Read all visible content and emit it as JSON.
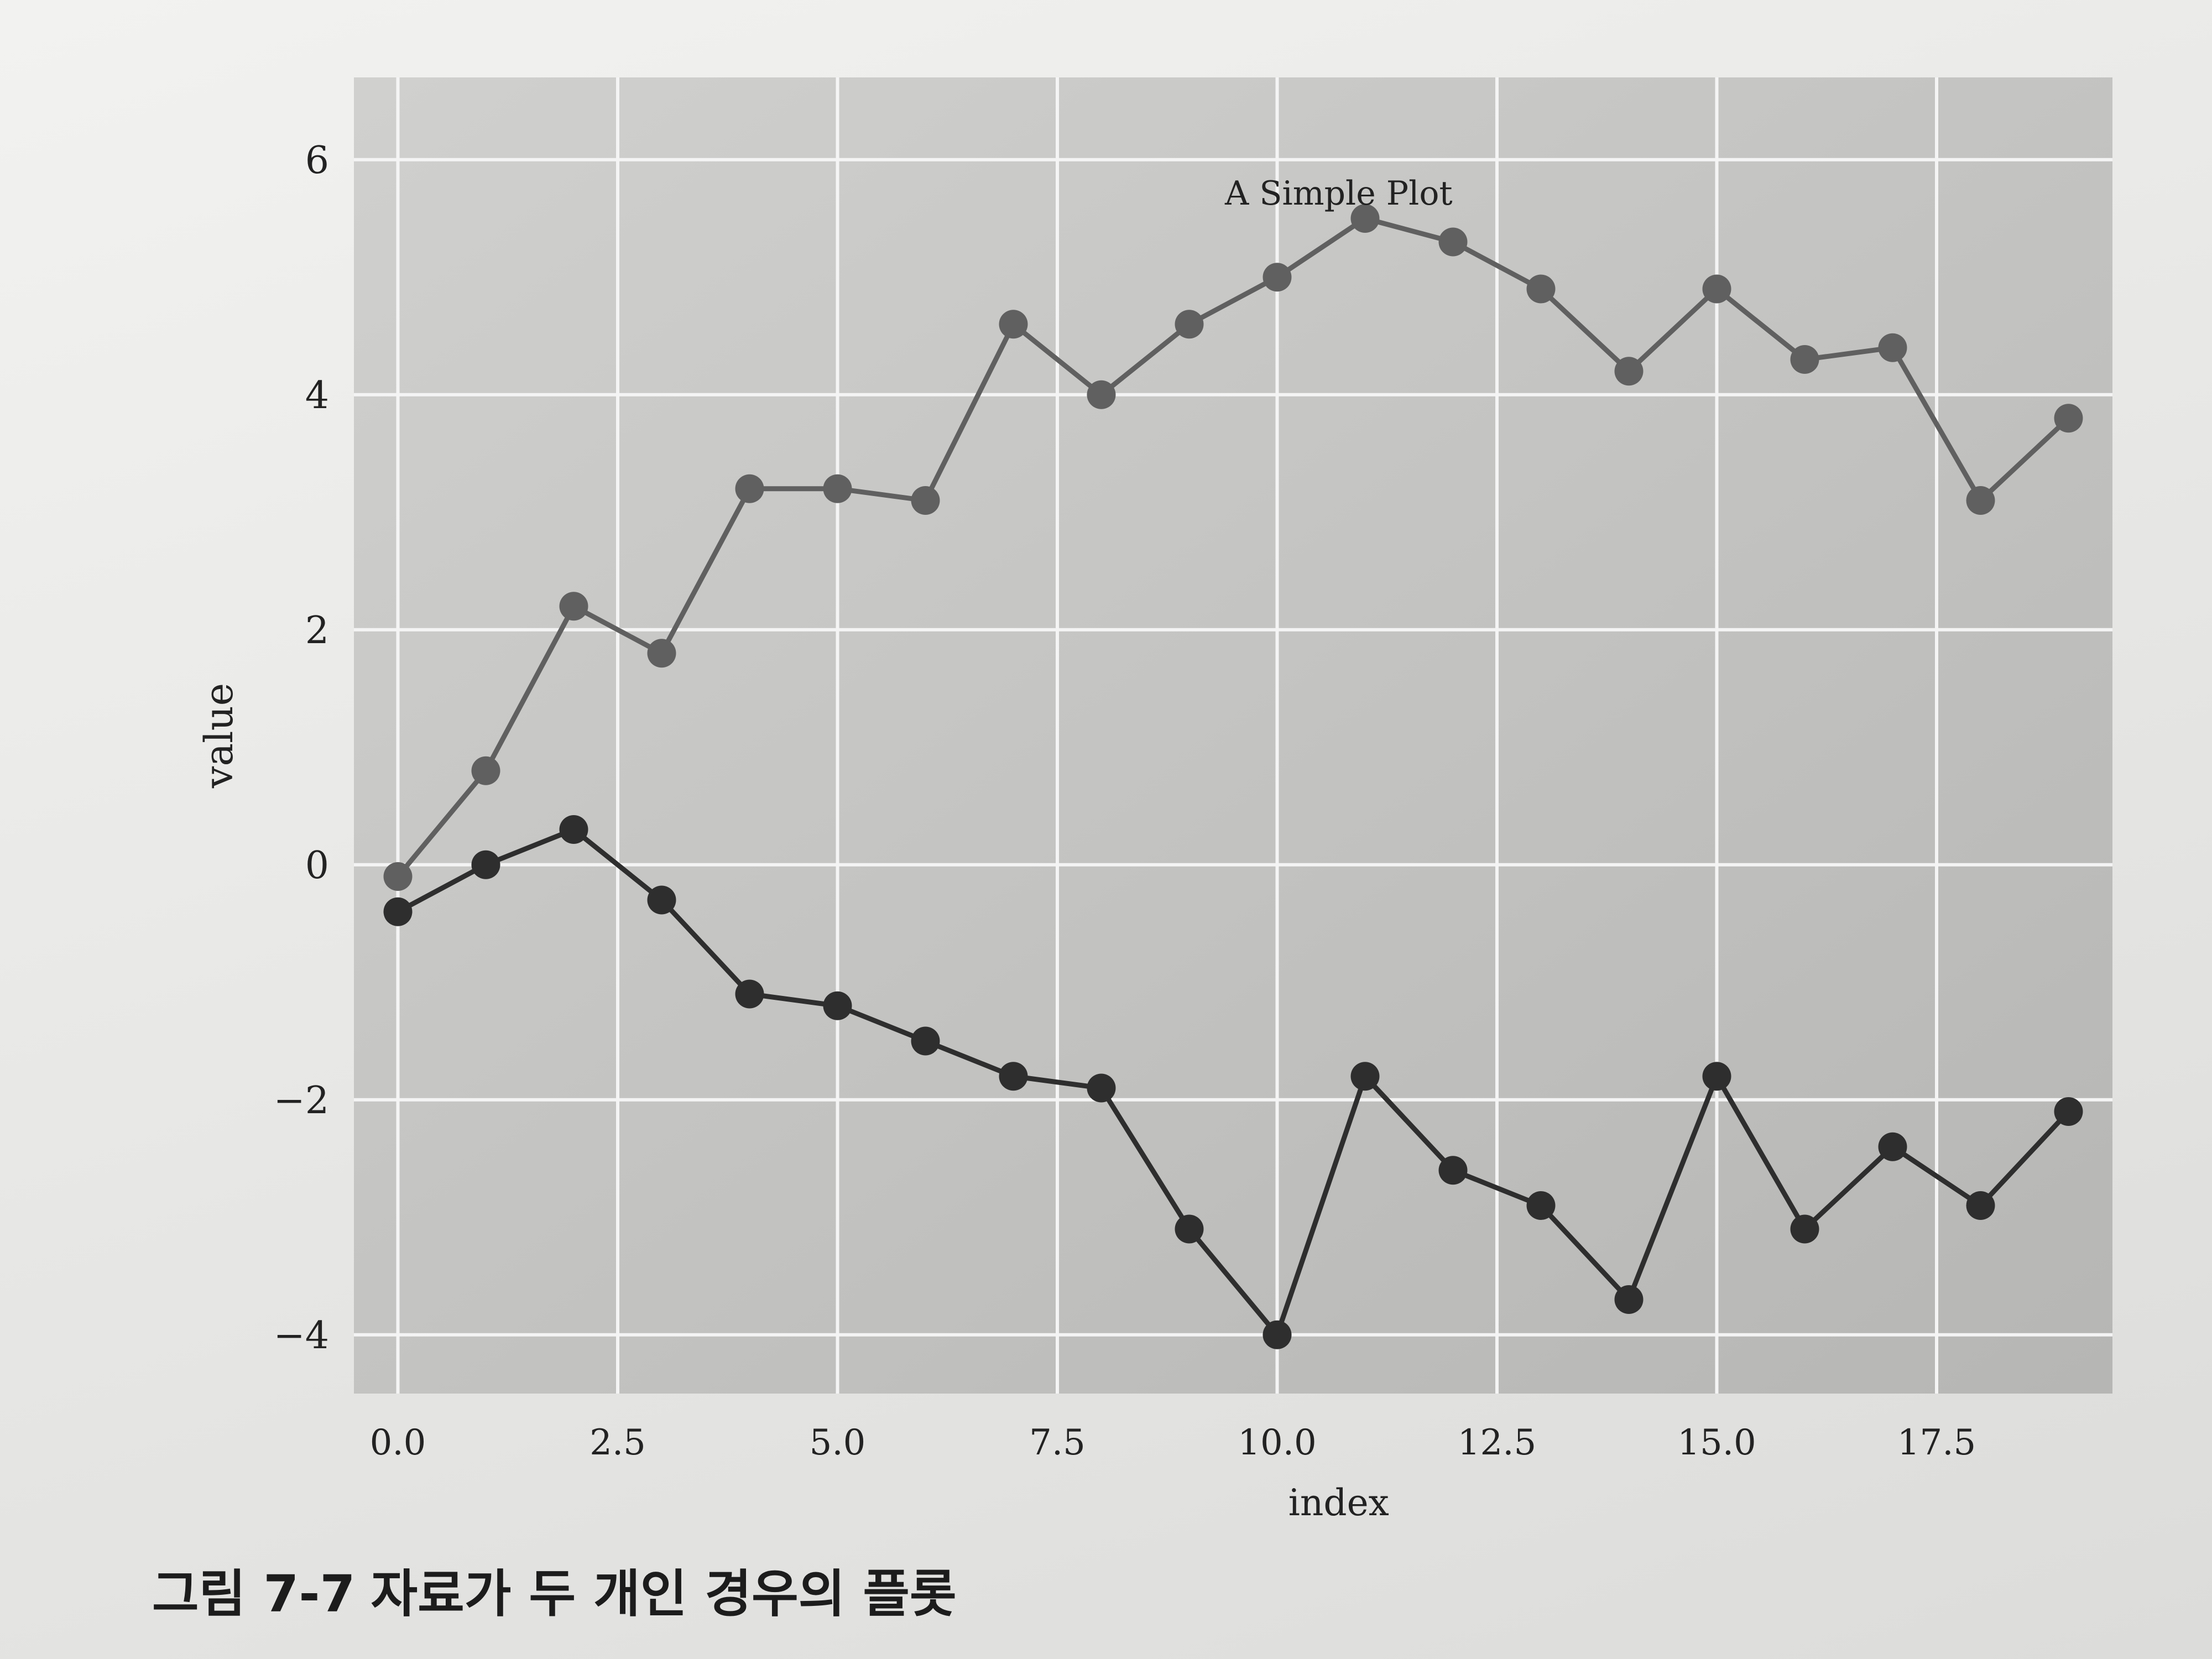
{
  "caption": {
    "label": "그림 7-7",
    "text": "자료가 두 개인 경우의 플롯"
  },
  "chart_data": {
    "type": "line",
    "title": "A Simple Plot",
    "xlabel": "index",
    "ylabel": "value",
    "xlim": [
      -0.5,
      19.5
    ],
    "ylim": [
      -4.5,
      6.7
    ],
    "xticks": [
      0.0,
      2.5,
      5.0,
      7.5,
      10.0,
      12.5,
      15.0,
      17.5
    ],
    "xtick_labels": [
      "0.0",
      "2.5",
      "5.0",
      "7.5",
      "10.0",
      "12.5",
      "15.0",
      "17.5"
    ],
    "yticks": [
      -4,
      -2,
      0,
      2,
      4,
      6
    ],
    "ytick_labels": [
      "−4",
      "−2",
      "0",
      "2",
      "4",
      "6"
    ],
    "grid": true,
    "x": [
      0,
      1,
      2,
      3,
      4,
      5,
      6,
      7,
      8,
      9,
      10,
      11,
      12,
      13,
      14,
      15,
      16,
      17,
      18,
      19
    ],
    "series": [
      {
        "values": [
          -0.1,
          0.8,
          2.2,
          1.8,
          3.2,
          3.2,
          3.1,
          4.6,
          4.0,
          4.6,
          5.0,
          5.5,
          5.3,
          4.9,
          4.2,
          4.9,
          4.3,
          4.4,
          3.1,
          3.8
        ],
        "color": "#606060"
      },
      {
        "values": [
          -0.4,
          0.0,
          0.3,
          -0.3,
          -1.1,
          -1.2,
          -1.5,
          -1.8,
          -1.9,
          -3.1,
          -4.0,
          -1.8,
          -2.6,
          -2.9,
          -3.7,
          -1.8,
          -3.1,
          -2.4,
          -2.9,
          -2.1
        ],
        "color": "#2e2e2e"
      }
    ],
    "colors": {
      "plot_background": "#c4c4c2",
      "grid": "#f4f4f4"
    }
  }
}
